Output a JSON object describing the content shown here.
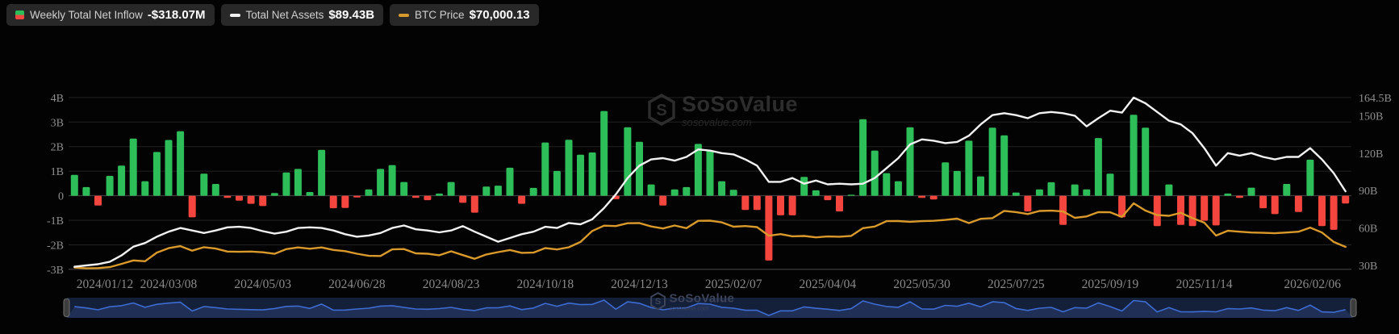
{
  "legend": {
    "items": [
      {
        "label": "Weekly Total Net Inflow",
        "value": "-$318.07M",
        "icon": "inflow-split-icon",
        "colors": [
          "#2dbe5a",
          "#f4463e"
        ]
      },
      {
        "label": "Total Net Assets",
        "value": "$89.43B",
        "icon": "assets-dash-icon",
        "color": "#f2f2f2"
      },
      {
        "label": "BTC Price",
        "value": "$70,000.13",
        "icon": "btc-dash-icon",
        "color": "#d6992e"
      }
    ]
  },
  "watermark": {
    "title": "SoSoValue",
    "subtitle": "sosovalue.com",
    "logo": "sosovalue-cube-logo"
  },
  "chart_data": {
    "type": "bar",
    "title": "",
    "xlabel": "",
    "ylabel_left": "Weekly Total Net Inflow (B USD)",
    "ylabel_right": "Total Net Assets (B USD)",
    "ylim_left": [
      -3,
      4
    ],
    "ylim_right": [
      30,
      164.5
    ],
    "grid": "horizontal",
    "legend_position": "top-left",
    "left_axis": {
      "values": [
        4,
        3,
        2,
        1,
        0,
        -1,
        -2,
        -3
      ],
      "ticks": [
        "4B",
        "3B",
        "2B",
        "1B",
        "0",
        "-1B",
        "-2B",
        "-3B"
      ]
    },
    "right_axis": {
      "ticks": [
        {
          "label": "164.5B",
          "value": 164.5
        },
        {
          "label": "150B",
          "value": 150
        },
        {
          "label": "120B",
          "value": 120
        },
        {
          "label": "90B",
          "value": 90
        },
        {
          "label": "60B",
          "value": 60
        },
        {
          "label": "30B",
          "value": 30
        }
      ]
    },
    "x_axis": {
      "labels": [
        {
          "text": "2024/01/12",
          "index": 0
        },
        {
          "text": "2024/03/08",
          "index": 8
        },
        {
          "text": "2024/05/03",
          "index": 16
        },
        {
          "text": "2024/06/28",
          "index": 24
        },
        {
          "text": "2024/08/23",
          "index": 32
        },
        {
          "text": "2024/10/18",
          "index": 40
        },
        {
          "text": "2024/12/13",
          "index": 48
        },
        {
          "text": "2025/02/07",
          "index": 56
        },
        {
          "text": "2025/04/04",
          "index": 64
        },
        {
          "text": "2025/05/30",
          "index": 72
        },
        {
          "text": "2025/07/25",
          "index": 80
        },
        {
          "text": "2025/09/19",
          "index": 88
        },
        {
          "text": "2025/11/14",
          "index": 96
        },
        {
          "text": "2026/02/06",
          "index": 108,
          "align": "right"
        }
      ]
    },
    "colors": {
      "positive": "#2dbe5a",
      "negative": "#f4463e",
      "assets": "#f2f2f2",
      "btc": "#d9992b",
      "grid": "#232323",
      "axis_line": "#4a4a4a",
      "navigator_bg": "#141f3a",
      "navigator_fill": "#202f55",
      "navigator_line": "#3d6cd2"
    },
    "series": [
      {
        "name": "Weekly Total Net Inflow",
        "type": "bar",
        "axis": "left",
        "unit": "B USD",
        "values": [
          0.85,
          0.35,
          -0.4,
          0.81,
          1.23,
          2.33,
          0.59,
          1.78,
          2.27,
          2.63,
          -0.88,
          0.9,
          0.48,
          -0.09,
          -0.2,
          -0.33,
          -0.42,
          0.11,
          0.95,
          1.09,
          0.15,
          1.87,
          -0.51,
          -0.5,
          -0.07,
          0.26,
          1.09,
          1.25,
          0.56,
          -0.09,
          -0.18,
          0.09,
          0.56,
          -0.29,
          -0.69,
          0.37,
          0.41,
          1.14,
          -0.33,
          0.32,
          2.17,
          1.01,
          2.28,
          1.67,
          1.76,
          3.45,
          -0.14,
          2.79,
          2.2,
          0.46,
          -0.4,
          0.26,
          0.35,
          2.11,
          1.84,
          0.59,
          0.24,
          -0.58,
          -0.58,
          -2.64,
          -0.8,
          -0.8,
          0.77,
          0.22,
          -0.18,
          -0.64,
          0.04,
          3.12,
          1.84,
          0.92,
          0.59,
          2.79,
          -0.09,
          -0.15,
          1.36,
          1.01,
          2.24,
          0.79,
          2.77,
          2.46,
          0.13,
          -0.64,
          0.26,
          0.55,
          -1.19,
          0.46,
          0.26,
          2.35,
          0.9,
          -0.88,
          3.3,
          2.77,
          -1.24,
          0.46,
          -1.19,
          -1.24,
          -1.02,
          -1.21,
          0.09,
          -0.09,
          0.33,
          -0.51,
          -0.75,
          0.48,
          -0.66,
          1.47,
          -1.24,
          -1.39,
          -0.32
        ]
      },
      {
        "name": "Total Net Assets",
        "type": "line",
        "axis": "right",
        "unit": "B USD",
        "values": [
          29,
          30,
          31,
          33,
          38,
          45,
          48,
          53,
          57,
          60,
          58,
          56,
          58,
          60.5,
          61,
          60,
          57.5,
          55.5,
          57,
          60,
          60.5,
          60,
          58,
          55,
          53,
          54,
          56,
          60,
          62,
          59,
          58,
          56.5,
          58,
          61.5,
          57,
          53,
          49,
          52,
          55,
          57,
          61,
          60,
          64,
          63,
          67,
          76,
          87,
          100,
          110,
          115,
          116,
          114,
          117,
          123,
          122,
          120,
          119,
          115,
          110,
          97,
          97,
          100,
          95.5,
          98,
          95,
          95.5,
          95,
          95.5,
          100,
          108,
          116,
          127,
          131,
          130,
          128,
          129,
          134,
          143,
          150.5,
          152,
          150.5,
          148,
          152,
          153,
          152,
          150,
          141.5,
          148,
          154,
          152.5,
          164.5,
          160,
          153,
          146,
          143,
          136,
          124,
          110,
          120,
          118,
          120,
          117,
          115,
          117,
          117,
          124,
          115,
          104,
          89.43
        ]
      },
      {
        "name": "BTC Price",
        "type": "line",
        "axis": "hidden",
        "unit": "k USD",
        "values": [
          42.8,
          41.6,
          42.0,
          43.2,
          47.5,
          52.1,
          51.0,
          62.4,
          68.3,
          71.0,
          65.0,
          69.6,
          67.8,
          63.8,
          63.5,
          63.8,
          62.9,
          60.8,
          67.0,
          69.3,
          67.5,
          69.3,
          66.0,
          64.3,
          60.9,
          58.2,
          57.9,
          66.7,
          67.1,
          61.5,
          60.9,
          58.9,
          64.1,
          59.1,
          54.2,
          60.0,
          63.1,
          65.8,
          62.1,
          62.4,
          68.4,
          66.6,
          69.5,
          76.5,
          91.0,
          98.0,
          97.5,
          101.2,
          101.4,
          97.0,
          94.3,
          98.2,
          94.7,
          104.4,
          104.6,
          102.4,
          96.6,
          97.5,
          96.1,
          84.7,
          86.8,
          84.0,
          84.4,
          82.6,
          83.8,
          83.4,
          84.5,
          94.7,
          96.9,
          104.0,
          104.1,
          103.2,
          104.0,
          104.4,
          105.6,
          107.3,
          101.5,
          107.1,
          108.0,
          117.5,
          115.9,
          113.4,
          117.4,
          117.9,
          116.8,
          108.4,
          110.2,
          115.9,
          115.7,
          109.6,
          127.6,
          118.0,
          112.0,
          111.0,
          115.0,
          108.0,
          102.0,
          84.9,
          91.3,
          90.0,
          89.0,
          88.5,
          88.0,
          89.0,
          90.0,
          95.5,
          89.0,
          76.5,
          70.0
        ]
      }
    ]
  },
  "navigator": {
    "present": true,
    "source_series": "Weekly Total Net Inflow"
  }
}
